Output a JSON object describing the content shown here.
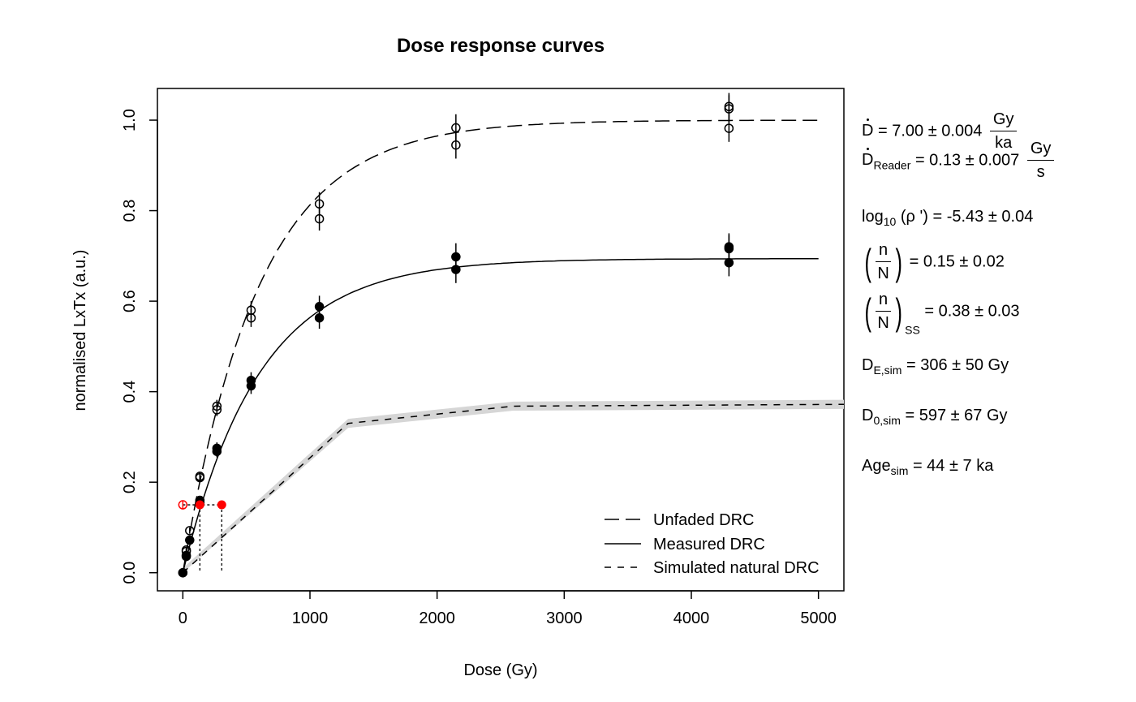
{
  "chart_data": {
    "type": "scatter",
    "title": "Dose response curves",
    "xlabel": "Dose (Gy)",
    "ylabel": "normalised LxTx (a.u.)",
    "xlim": [
      -200,
      5200
    ],
    "ylim": [
      -0.04,
      1.07
    ],
    "xticks": [
      0,
      1000,
      2000,
      3000,
      4000,
      5000
    ],
    "yticks": [
      "0.0",
      "0.2",
      "0.4",
      "0.6",
      "0.8",
      "1.0"
    ],
    "grid": false,
    "legend_position": "bottom-right",
    "legend": [
      {
        "label": "Unfaded DRC",
        "style": "longdash"
      },
      {
        "label": "Measured DRC",
        "style": "solid"
      },
      {
        "label": "Simulated natural DRC",
        "style": "dashed"
      }
    ],
    "curves": {
      "unfaded": {
        "type": "saturating_exponential",
        "a": 1.0,
        "d0": 597
      },
      "measured": {
        "type": "saturating_exponential",
        "a": 0.694,
        "d0": 597
      },
      "simulated_natural": {
        "x": [
          0,
          1300,
          2600,
          5200
        ],
        "y": [
          0.0,
          0.33,
          0.368,
          0.372
        ],
        "band": 0.01
      }
    },
    "unfaded_points": [
      {
        "x": 0,
        "y": 0.0,
        "err": 0.0
      },
      {
        "x": 27,
        "y": 0.047,
        "err": 0.006
      },
      {
        "x": 27,
        "y": 0.05,
        "err": 0.006
      },
      {
        "x": 54,
        "y": 0.093,
        "err": 0.007
      },
      {
        "x": 134,
        "y": 0.21,
        "err": 0.01
      },
      {
        "x": 134,
        "y": 0.213,
        "err": 0.01
      },
      {
        "x": 268,
        "y": 0.36,
        "err": 0.014
      },
      {
        "x": 268,
        "y": 0.368,
        "err": 0.014
      },
      {
        "x": 537,
        "y": 0.563,
        "err": 0.02
      },
      {
        "x": 537,
        "y": 0.58,
        "err": 0.02
      },
      {
        "x": 1074,
        "y": 0.782,
        "err": 0.026
      },
      {
        "x": 1074,
        "y": 0.815,
        "err": 0.026
      },
      {
        "x": 2148,
        "y": 0.945,
        "err": 0.03
      },
      {
        "x": 2148,
        "y": 0.983,
        "err": 0.03
      },
      {
        "x": 4296,
        "y": 0.982,
        "err": 0.03
      },
      {
        "x": 4296,
        "y": 1.025,
        "err": 0.03
      },
      {
        "x": 4296,
        "y": 1.03,
        "err": 0.03
      }
    ],
    "measured_points": [
      {
        "x": 0,
        "y": 0.0,
        "err": 0.0
      },
      {
        "x": 27,
        "y": 0.036,
        "err": 0.005
      },
      {
        "x": 27,
        "y": 0.038,
        "err": 0.005
      },
      {
        "x": 54,
        "y": 0.072,
        "err": 0.006
      },
      {
        "x": 134,
        "y": 0.155,
        "err": 0.009
      },
      {
        "x": 134,
        "y": 0.16,
        "err": 0.009
      },
      {
        "x": 268,
        "y": 0.268,
        "err": 0.013
      },
      {
        "x": 268,
        "y": 0.275,
        "err": 0.013
      },
      {
        "x": 537,
        "y": 0.413,
        "err": 0.018
      },
      {
        "x": 537,
        "y": 0.425,
        "err": 0.018
      },
      {
        "x": 1074,
        "y": 0.563,
        "err": 0.024
      },
      {
        "x": 1074,
        "y": 0.588,
        "err": 0.024
      },
      {
        "x": 2148,
        "y": 0.67,
        "err": 0.03
      },
      {
        "x": 2148,
        "y": 0.698,
        "err": 0.03
      },
      {
        "x": 4296,
        "y": 0.685,
        "err": 0.03
      },
      {
        "x": 4296,
        "y": 0.716,
        "err": 0.03
      },
      {
        "x": 4296,
        "y": 0.72,
        "err": 0.03
      }
    ],
    "natural_signal": {
      "y": 0.15,
      "open_point": {
        "x": 0,
        "err": 0.01
      },
      "measured_de": 134,
      "simulated_de": 306,
      "color": "#ff0000"
    }
  },
  "annotations": {
    "dose_rate": {
      "symbol": "D",
      "text": "= 7.00 ± 0.004",
      "num": "Gy",
      "den": "ka"
    },
    "reader_rate": {
      "symbol": "D",
      "sub": "Reader",
      "text": "= 0.13 ± 0.007",
      "num": "Gy",
      "den": "s"
    },
    "rho": {
      "prefix": "log",
      "sub": "10",
      "text": "(ρ ') = -5.43 ± 0.04"
    },
    "nN": {
      "num": "n",
      "den": "N",
      "text": "= 0.15 ± 0.02"
    },
    "nN_ss": {
      "num": "n",
      "den": "N",
      "sub": "SS",
      "text": "= 0.38 ± 0.03"
    },
    "de_sim": {
      "symbol": "D",
      "sub": "E,sim",
      "text": "= 306 ± 50 Gy"
    },
    "d0_sim": {
      "symbol": "D",
      "sub": "0,sim",
      "text": "= 597 ± 67 Gy"
    },
    "age_sim": {
      "symbol": "Age",
      "sub": "sim",
      "text": "= 44 ± 7 ka"
    }
  }
}
